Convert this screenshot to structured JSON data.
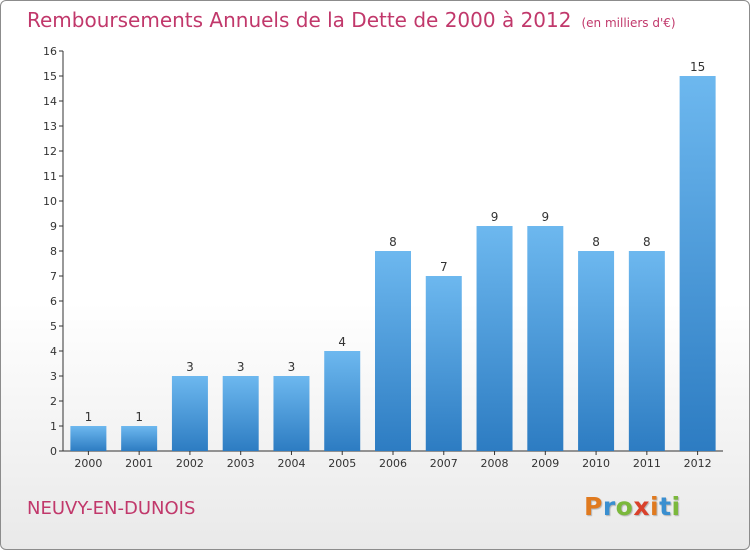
{
  "header": {
    "title": "Remboursements Annuels de la Dette de 2000 à 2012",
    "unit": "(en milliers d'€)"
  },
  "footer": {
    "commune": "NEUVY-EN-DUNOIS",
    "logo_letters": [
      "P",
      "r",
      "o",
      "x",
      "i",
      "t",
      "i"
    ],
    "logo_colors": [
      "#e07a1f",
      "#3a8fd0",
      "#7bb83c",
      "#d9412b",
      "#e07a1f",
      "#3a8fd0",
      "#7bb83c"
    ]
  },
  "colors": {
    "bar": "#4a9fe0",
    "bar_light": "#6db8ef",
    "bar_dark": "#2d7cc2",
    "grid": "#d0d0d0",
    "axis": "#333333",
    "title": "#c1386b"
  },
  "chart_data": {
    "type": "bar",
    "categories": [
      "2000",
      "2001",
      "2002",
      "2003",
      "2004",
      "2005",
      "2006",
      "2007",
      "2008",
      "2009",
      "2010",
      "2011",
      "2012"
    ],
    "values": [
      1,
      1,
      3,
      3,
      3,
      4,
      8,
      7,
      9,
      9,
      8,
      8,
      15
    ],
    "ylim": [
      0,
      16
    ],
    "yticks": [
      0,
      1,
      2,
      3,
      4,
      5,
      6,
      7,
      8,
      9,
      10,
      11,
      12,
      13,
      14,
      15,
      16
    ],
    "grid": false,
    "data_labels": true
  }
}
